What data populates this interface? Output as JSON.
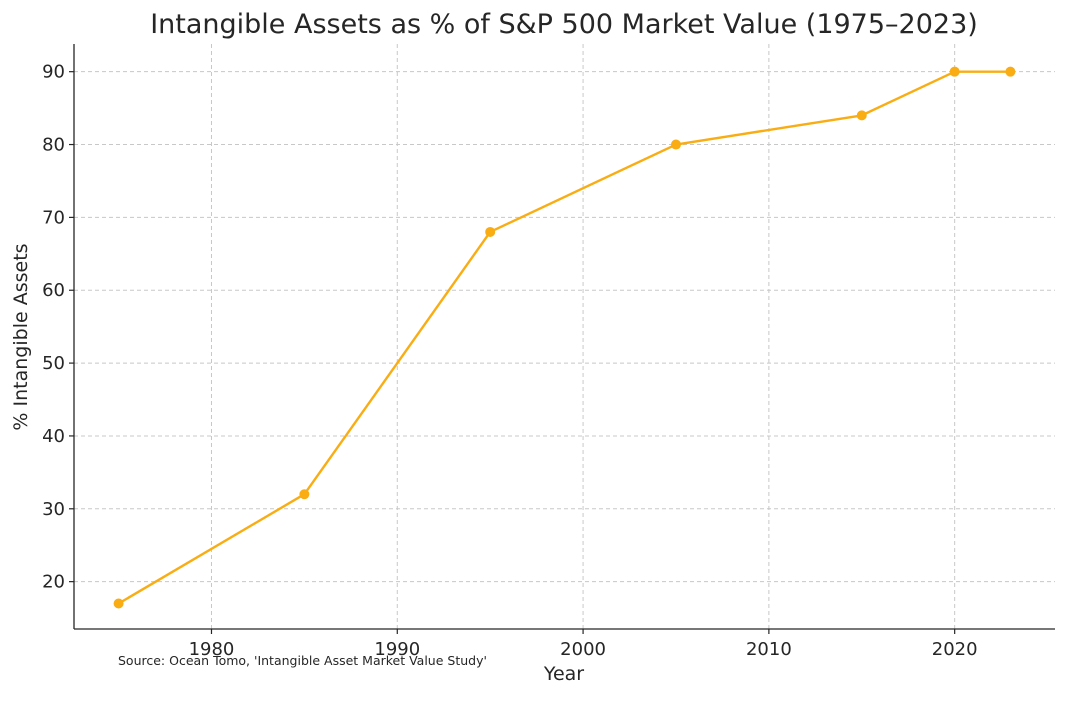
{
  "chart_data": {
    "type": "line",
    "title": "Intangible Assets as % of S&P 500 Market Value (1975–2023)",
    "xlabel": "Year",
    "ylabel": "% Intangible Assets",
    "xlim": [
      1972.6,
      2025.4
    ],
    "ylim": [
      13.5,
      93.8
    ],
    "x_ticks": [
      1980,
      1990,
      2000,
      2010,
      2020
    ],
    "y_ticks": [
      20,
      30,
      40,
      50,
      60,
      70,
      80,
      90
    ],
    "grid": true,
    "series": [
      {
        "color": "#F9AD13",
        "points": [
          {
            "x": 1975,
            "y": 17
          },
          {
            "x": 1985,
            "y": 32
          },
          {
            "x": 1995,
            "y": 68
          },
          {
            "x": 2005,
            "y": 80
          },
          {
            "x": 2015,
            "y": 84
          },
          {
            "x": 2020,
            "y": 90
          },
          {
            "x": 2023,
            "y": 90
          }
        ]
      }
    ],
    "source": "Source: Ocean Tomo, 'Intangible Asset Market Value Study'"
  }
}
